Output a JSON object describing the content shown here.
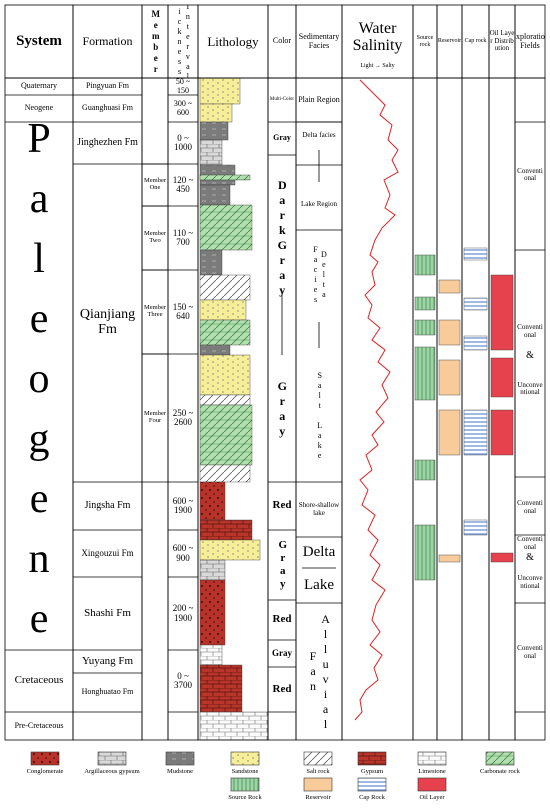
{
  "header": {
    "system": "System",
    "formation": "Formation",
    "member": "Member",
    "thickness": "Interval Thickness/m",
    "lithology": "Lithology",
    "color": "Color",
    "facies": "Sedimentary Facies",
    "salinity": "Water Salinity",
    "salinity_scale": "Light → Salty",
    "source_rock": "Source rock",
    "reservoir": "Reservoir",
    "cap_rock": "Cap rock",
    "oil_layer": "Oil Layer Distribution",
    "exploration": "Exploration Fields"
  },
  "systems": [
    "Quaternary",
    "Neogene",
    "Paleogene",
    "Cretaceous",
    "Pre-Cretaceous"
  ],
  "formations": [
    "Pingyuan Fm",
    "Guanghuasi Fm",
    "Jinghezhen Fm",
    "Qianjiang Fm",
    "Jingsha Fm",
    "Xingouzui Fm",
    "Shashi Fm",
    "Yuyang Fm",
    "Honghuatao Fm"
  ],
  "members": [
    "Member One",
    "Member Two",
    "Member Three",
    "Member Four"
  ],
  "thickness": [
    "50 ~ 150",
    "300 ~ 600",
    "0 ~ 1000",
    "120 ~ 450",
    "110 ~ 700",
    "150 ~ 640",
    "250 ~ 2600",
    "600 ~ 1900",
    "600 ~ 900",
    "200 ~ 1900",
    "0 ~ 3700"
  ],
  "colors": [
    "Multi-Color",
    "Gray",
    "DarkGray",
    "Gray",
    "Red",
    "Gray",
    "Red",
    "Gray",
    "Red"
  ],
  "facies": [
    "Plain Region",
    "Delta facies",
    "Lake Region",
    "Delta Facies",
    "Salt Lake",
    "Shore-shallow lake",
    "Delta",
    "Lake",
    "Alluvial Fan"
  ],
  "exploration": [
    "Conventional",
    "Conventional",
    "&",
    "Unconventional",
    "Conventional",
    "Conventional",
    "&",
    "Unconventional",
    "Conventional"
  ],
  "legend": [
    "Conglomerate",
    "Argillaceous gypsum",
    "Mudstone",
    "Sandstone",
    "Salt rock",
    "Gypsum",
    "Limestone",
    "Carbonate rock",
    "Source Rock",
    "Reservoir",
    "Cap Rock",
    "Oil Layer"
  ]
}
